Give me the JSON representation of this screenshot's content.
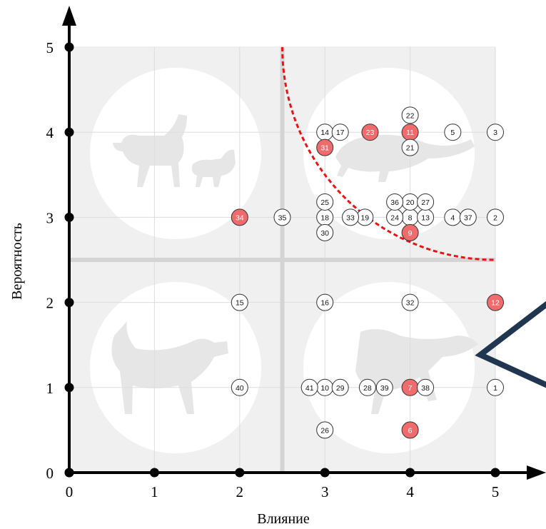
{
  "chart_data": {
    "type": "scatter",
    "title": "",
    "xlabel": "Влияние",
    "ylabel": "Вероятность",
    "xlim": [
      0,
      5
    ],
    "ylim": [
      0,
      5
    ],
    "x_ticks": [
      "0",
      "1",
      "2",
      "3",
      "4",
      "5"
    ],
    "y_ticks": [
      "0",
      "1",
      "2",
      "3",
      "4",
      "5"
    ],
    "grid": true,
    "quadrant_divider": {
      "x": 2.5,
      "y": 2.5
    },
    "threshold_curve": {
      "center": [
        5,
        5
      ],
      "radius": 2.5,
      "style": "dashed",
      "color": "#ee1111"
    },
    "colors": {
      "highlight_fill": "#f06b6b",
      "normal_fill": "#ffffff",
      "point_stroke": "#333333",
      "axis": "#000000",
      "quadrant_bg": "#f0f0f0",
      "grid": "#dddddd",
      "divider": "#d4d4d4",
      "arrow_shape": "#20354f"
    },
    "points": [
      {
        "label": "1",
        "x": 5,
        "y": 1,
        "highlight": false
      },
      {
        "label": "2",
        "x": 5,
        "y": 3,
        "highlight": false
      },
      {
        "label": "3",
        "x": 5,
        "y": 4,
        "highlight": false
      },
      {
        "label": "4",
        "x": 4.5,
        "y": 3,
        "highlight": false
      },
      {
        "label": "5",
        "x": 4.5,
        "y": 4,
        "highlight": false
      },
      {
        "label": "6",
        "x": 4,
        "y": 0.5,
        "highlight": true
      },
      {
        "label": "7",
        "x": 4,
        "y": 1,
        "highlight": true
      },
      {
        "label": "8",
        "x": 4,
        "y": 3,
        "highlight": false
      },
      {
        "label": "9",
        "x": 4,
        "y": 2.82,
        "highlight": true
      },
      {
        "label": "10",
        "x": 3,
        "y": 1,
        "highlight": false
      },
      {
        "label": "11",
        "x": 4,
        "y": 4,
        "highlight": true
      },
      {
        "label": "12",
        "x": 5,
        "y": 2,
        "highlight": true
      },
      {
        "label": "13",
        "x": 4.18,
        "y": 3,
        "highlight": false
      },
      {
        "label": "14",
        "x": 3,
        "y": 4,
        "highlight": false
      },
      {
        "label": "15",
        "x": 2,
        "y": 2,
        "highlight": false
      },
      {
        "label": "16",
        "x": 3,
        "y": 2,
        "highlight": false
      },
      {
        "label": "17",
        "x": 3.18,
        "y": 4,
        "highlight": false
      },
      {
        "label": "18",
        "x": 3,
        "y": 3,
        "highlight": false
      },
      {
        "label": "19",
        "x": 3.47,
        "y": 3,
        "highlight": false
      },
      {
        "label": "20",
        "x": 4,
        "y": 3.18,
        "highlight": false
      },
      {
        "label": "21",
        "x": 4,
        "y": 3.82,
        "highlight": false
      },
      {
        "label": "22",
        "x": 4,
        "y": 4.2,
        "highlight": false
      },
      {
        "label": "23",
        "x": 3.53,
        "y": 4,
        "highlight": true
      },
      {
        "label": "24",
        "x": 3.82,
        "y": 3,
        "highlight": false
      },
      {
        "label": "25",
        "x": 3,
        "y": 3.18,
        "highlight": false
      },
      {
        "label": "26",
        "x": 3,
        "y": 0.5,
        "highlight": false
      },
      {
        "label": "27",
        "x": 4.18,
        "y": 3.18,
        "highlight": false
      },
      {
        "label": "28",
        "x": 3.5,
        "y": 1,
        "highlight": false
      },
      {
        "label": "29",
        "x": 3.18,
        "y": 1,
        "highlight": false
      },
      {
        "label": "30",
        "x": 3,
        "y": 2.82,
        "highlight": false
      },
      {
        "label": "31",
        "x": 3,
        "y": 3.82,
        "highlight": true
      },
      {
        "label": "32",
        "x": 4,
        "y": 2,
        "highlight": false
      },
      {
        "label": "33",
        "x": 3.3,
        "y": 3,
        "highlight": false
      },
      {
        "label": "34",
        "x": 2,
        "y": 3,
        "highlight": true
      },
      {
        "label": "35",
        "x": 2.5,
        "y": 3,
        "highlight": false
      },
      {
        "label": "36",
        "x": 3.82,
        "y": 3.18,
        "highlight": false
      },
      {
        "label": "37",
        "x": 4.68,
        "y": 3,
        "highlight": false
      },
      {
        "label": "38",
        "x": 4.18,
        "y": 1,
        "highlight": false
      },
      {
        "label": "39",
        "x": 3.7,
        "y": 1,
        "highlight": false
      },
      {
        "label": "40",
        "x": 2,
        "y": 1,
        "highlight": false
      },
      {
        "label": "41",
        "x": 2.82,
        "y": 1,
        "highlight": false
      }
    ]
  }
}
